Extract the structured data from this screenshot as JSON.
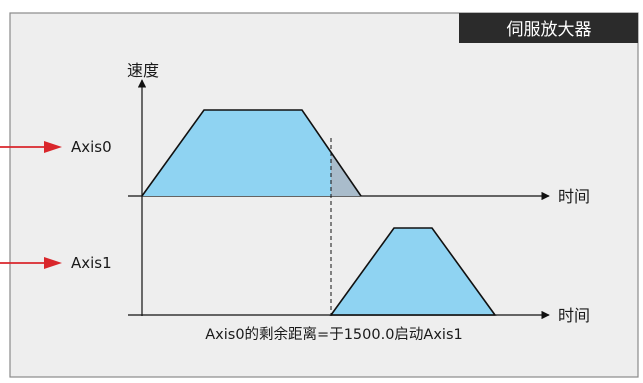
{
  "title": "伺服放大器",
  "y_axis_label": "速度",
  "x_axis_label_top": "时间",
  "x_axis_label_bottom": "时间",
  "axis0_label": "Axis0",
  "axis1_label": "Axis1",
  "caption": "Axis0的剩余距离=于1500.0启动Axis1",
  "colors": {
    "panel_bg": "#eeeeee",
    "panel_border": "#8a8a8a",
    "title_bar": "#2b2b2b",
    "profile_fill": "#8fd3f2",
    "remaining_fill": "#a9bccb",
    "line": "#111111",
    "arrow_red": "#d9262b"
  }
}
